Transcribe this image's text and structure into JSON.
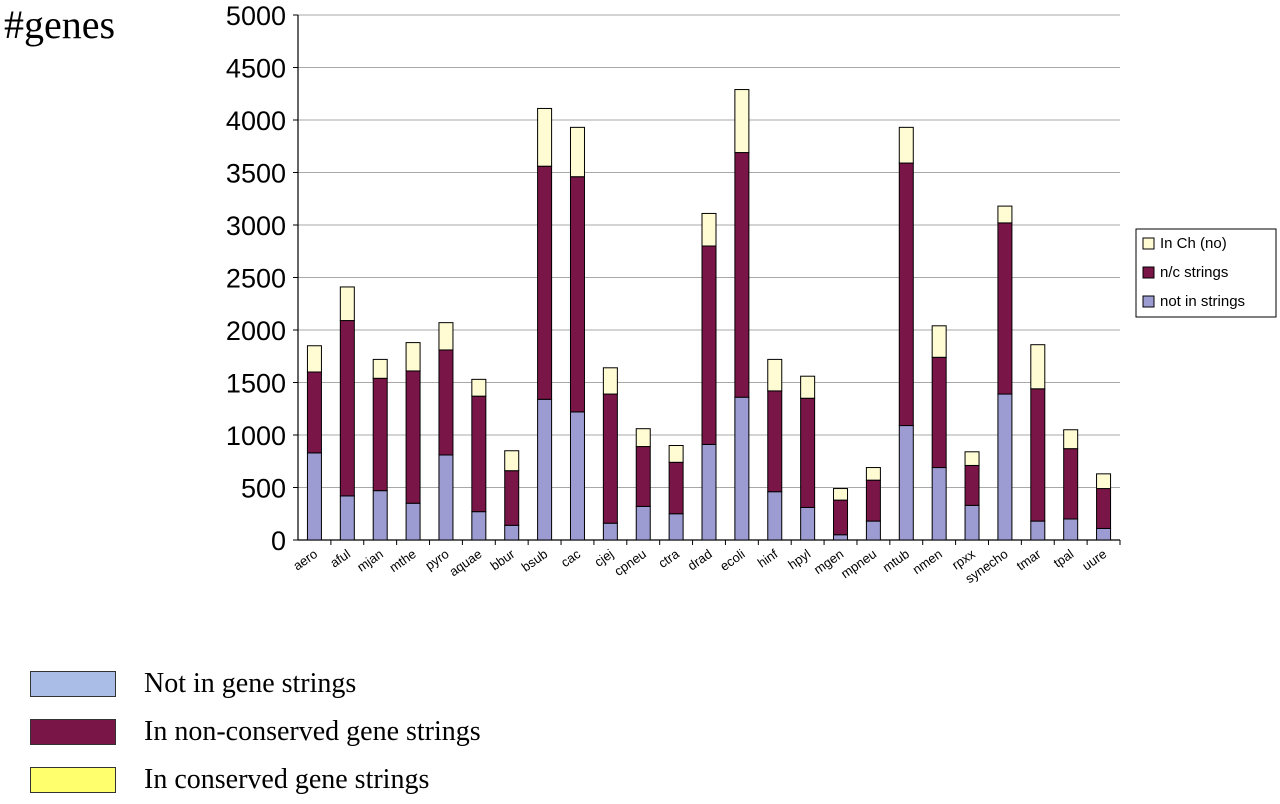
{
  "chart_data": {
    "type": "bar",
    "stacked": true,
    "ylabel": "#genes",
    "xlabel": "",
    "ylim": [
      0,
      5000
    ],
    "yticks": [
      0,
      500,
      1000,
      1500,
      2000,
      2500,
      3000,
      3500,
      4000,
      4500,
      5000
    ],
    "grid": true,
    "legend_position": "right",
    "categories": [
      "aero",
      "aful",
      "mjan",
      "mthe",
      "pyro",
      "aquae",
      "bbur",
      "bsub",
      "cac",
      "cjej",
      "cpneu",
      "ctra",
      "drad",
      "ecoli",
      "hinf",
      "hpyl",
      "mgen",
      "mpneu",
      "mtub",
      "nmen",
      "rpxx",
      "synecho",
      "tmar",
      "tpal",
      "uure"
    ],
    "series": [
      {
        "name": "not in strings",
        "color": "#9c9cd2",
        "values": [
          830,
          420,
          470,
          350,
          810,
          270,
          140,
          1340,
          1220,
          160,
          320,
          250,
          910,
          1360,
          460,
          310,
          50,
          180,
          1090,
          690,
          330,
          1390,
          180,
          200,
          110
        ]
      },
      {
        "name": "n/c strings",
        "color": "#7a1548",
        "values": [
          770,
          1670,
          1070,
          1260,
          1000,
          1100,
          520,
          2220,
          2240,
          1230,
          570,
          490,
          1890,
          2330,
          960,
          1040,
          330,
          390,
          2500,
          1050,
          380,
          1630,
          1260,
          670,
          380
        ]
      },
      {
        "name": "In Ch (no)",
        "color": "#fffcd4",
        "values": [
          250,
          320,
          180,
          270,
          260,
          160,
          190,
          550,
          470,
          250,
          170,
          160,
          310,
          600,
          300,
          210,
          110,
          120,
          340,
          300,
          130,
          160,
          420,
          180,
          140
        ]
      }
    ]
  },
  "bottom_legend": {
    "items": [
      {
        "label": "Not in gene strings",
        "color": "#a9bde6"
      },
      {
        "label": "In non-conserved gene strings",
        "color": "#7a1548"
      },
      {
        "label": "In conserved gene strings",
        "color": "#ffff6e"
      }
    ]
  }
}
